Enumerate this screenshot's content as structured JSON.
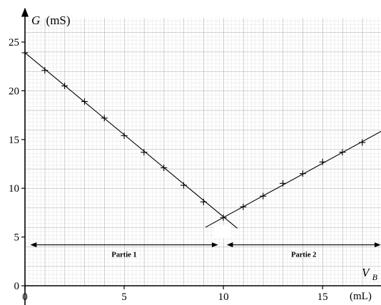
{
  "chart_data": {
    "type": "scatter",
    "title": "",
    "y_label": {
      "symbol": "G",
      "unit": "(mS)"
    },
    "x_label": {
      "symbol": "V",
      "subscript": "B",
      "unit": "(mL)"
    },
    "xlim": [
      0,
      18
    ],
    "ylim": [
      0,
      27.5
    ],
    "x_ticks": [
      0,
      5,
      10,
      15
    ],
    "y_ticks": [
      0,
      5,
      10,
      15,
      20,
      25
    ],
    "grid": true,
    "series": [
      {
        "x": [
          0,
          1,
          2,
          3,
          4,
          5,
          6,
          7,
          8,
          9,
          10,
          11,
          12,
          13,
          14,
          15,
          16,
          17
        ],
        "y": [
          23.9,
          22.1,
          20.5,
          18.9,
          17.2,
          15.4,
          13.7,
          12.1,
          10.3,
          8.6,
          7.0,
          8.1,
          9.2,
          10.5,
          11.5,
          12.7,
          13.7,
          14.7
        ]
      }
    ],
    "fit_lines": [
      {
        "x": [
          0,
          10.7
        ],
        "y": [
          23.9,
          5.9
        ]
      },
      {
        "x": [
          9.1,
          18
        ],
        "y": [
          6.0,
          15.9
        ]
      }
    ],
    "annotations": [
      {
        "text": "Partie 1",
        "x_range": [
          0.3,
          9.7
        ],
        "y": 4.2
      },
      {
        "text": "Partie 2",
        "x_range": [
          10.2,
          17.9
        ],
        "y": 4.2
      }
    ]
  }
}
